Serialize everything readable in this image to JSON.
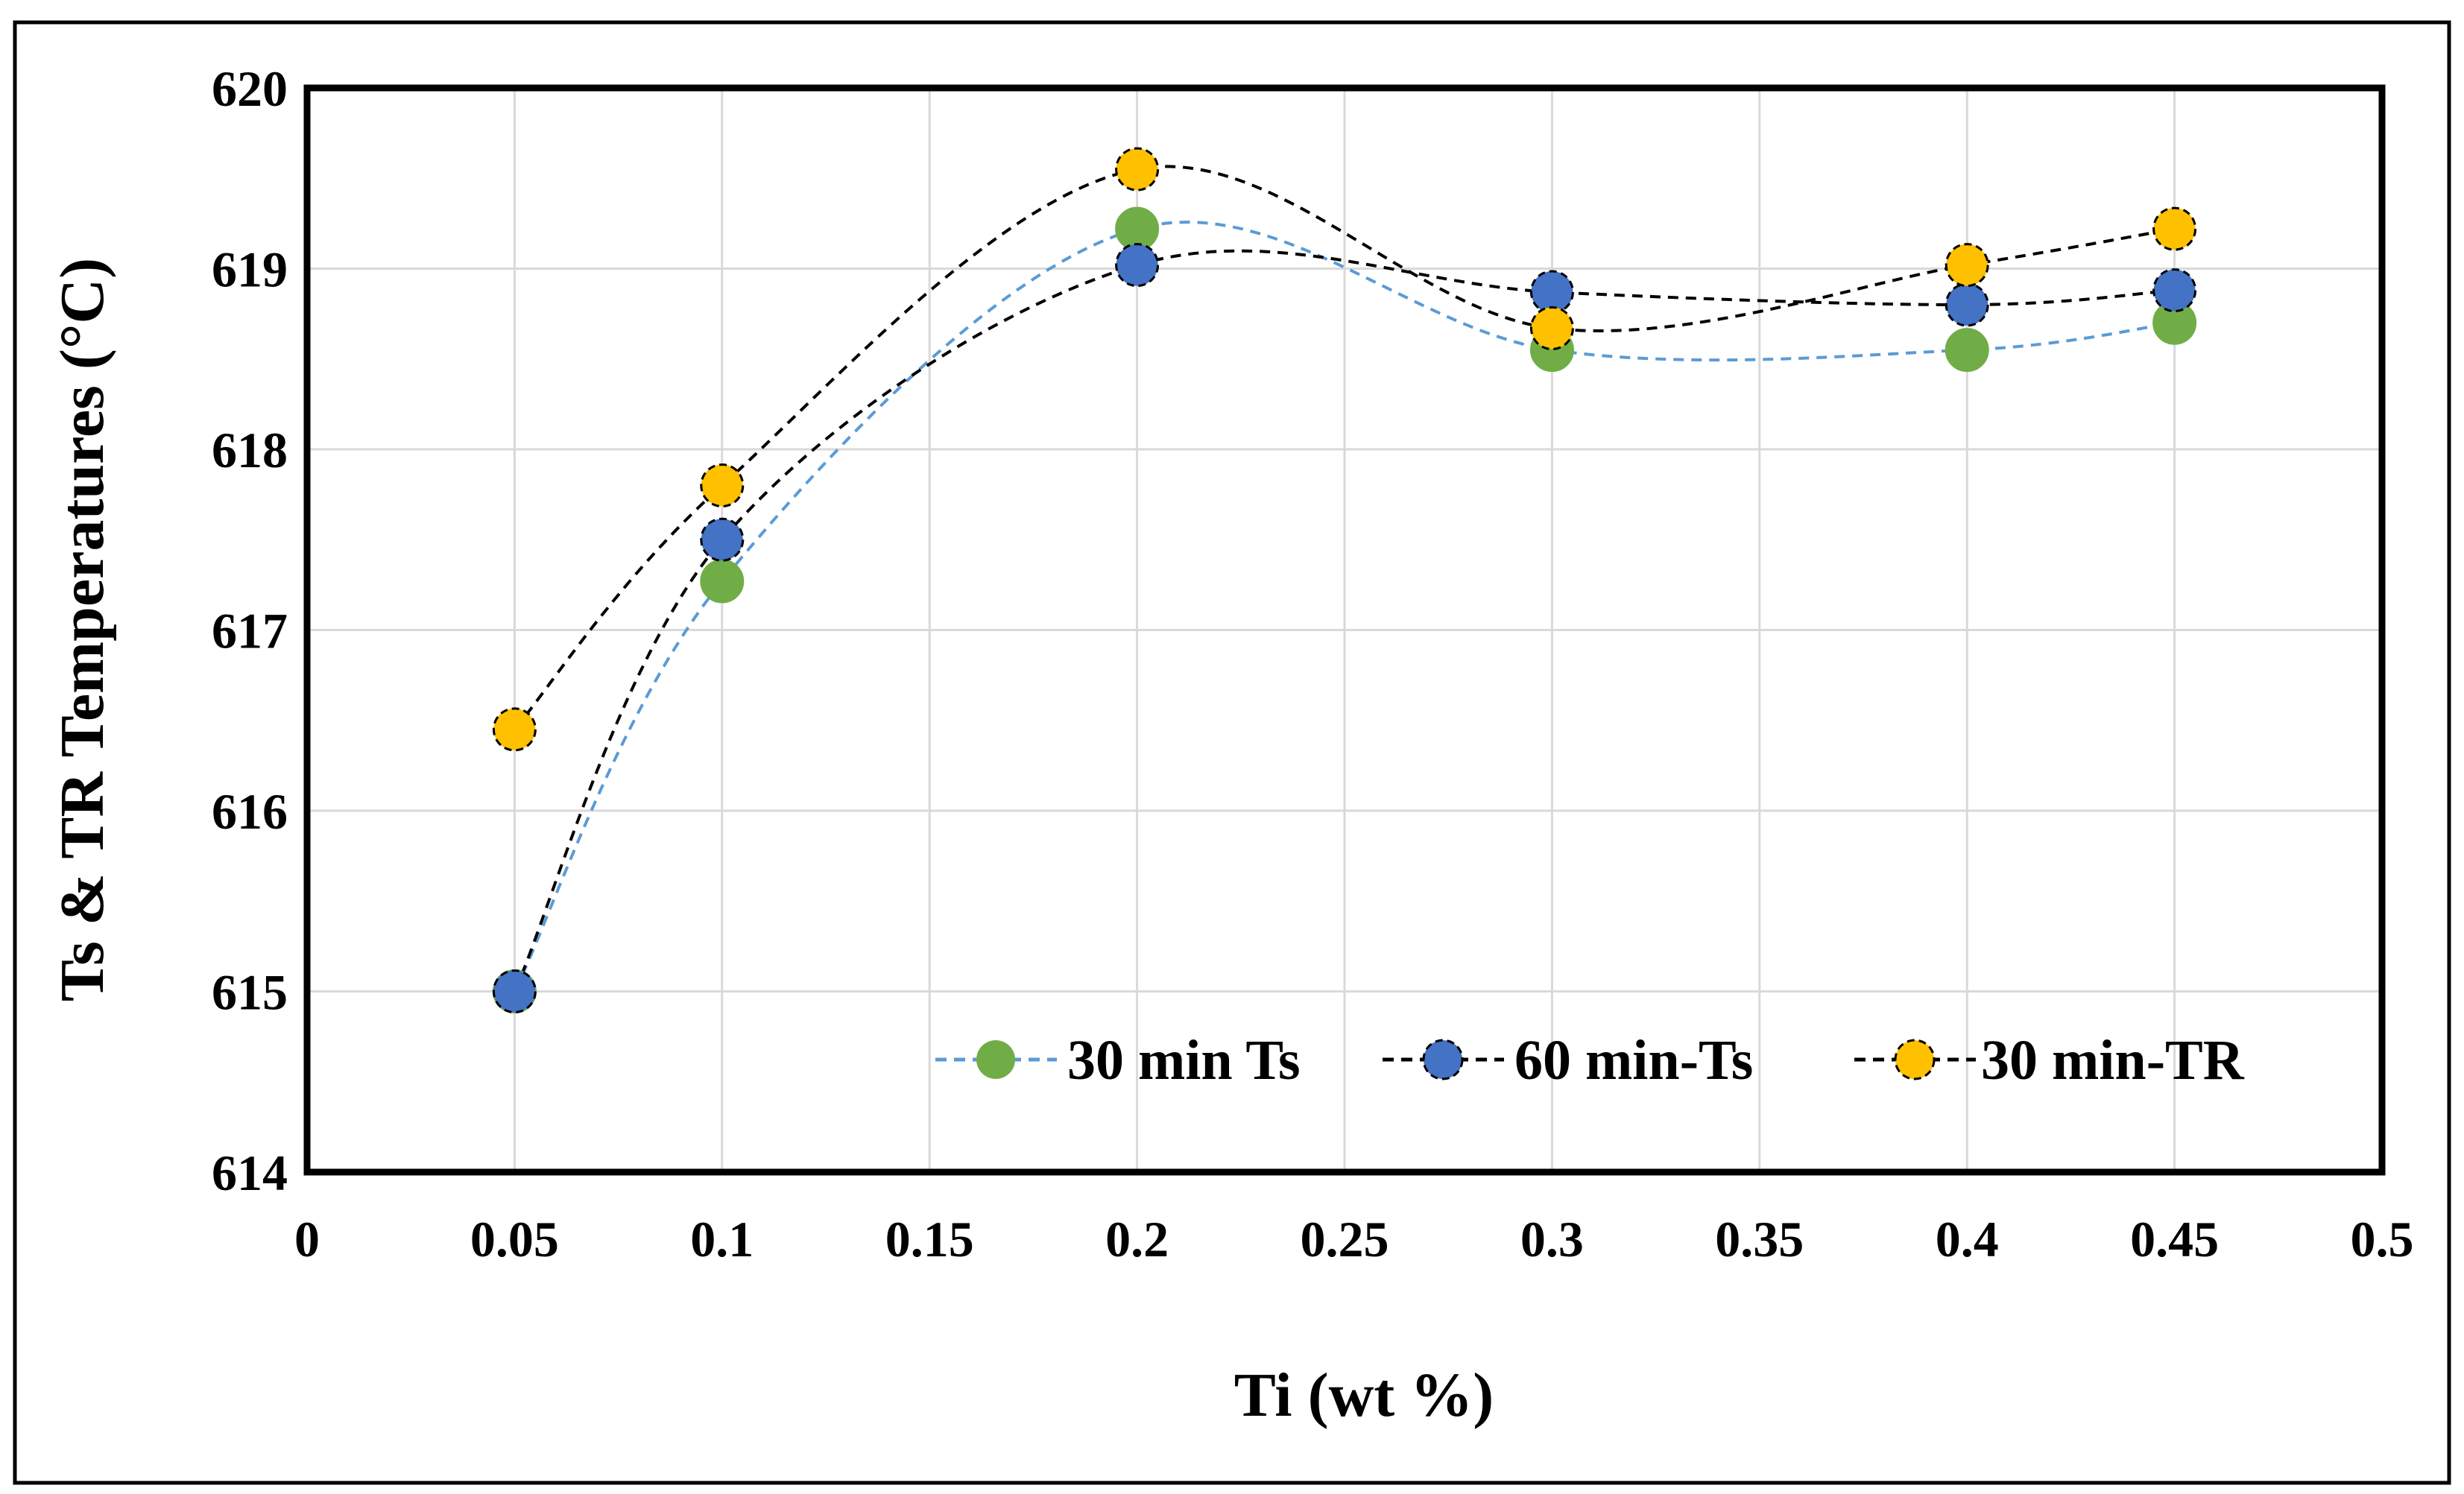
{
  "chart_data": {
    "type": "scatter",
    "title": "",
    "xlabel": "Ti (wt %)",
    "ylabel": "Ts & TR Temperatures (°C)",
    "xlim": [
      0,
      0.5
    ],
    "ylim": [
      614,
      620
    ],
    "xticks": [
      0,
      0.05,
      0.1,
      0.15,
      0.2,
      0.25,
      0.3,
      0.35,
      0.4,
      0.45,
      0.5
    ],
    "xtick_labels": [
      "0",
      "0.05",
      "0.1",
      "0.15",
      "0.2",
      "0.25",
      "0.3",
      "0.35",
      "0.4",
      "0.45",
      "0.5"
    ],
    "yticks": [
      614,
      615,
      616,
      617,
      618,
      619,
      620
    ],
    "ytick_labels": [
      "614",
      "615",
      "616",
      "617",
      "618",
      "619",
      "620"
    ],
    "grid": true,
    "legend_position": "bottom-right",
    "x": [
      0.05,
      0.1,
      0.2,
      0.3,
      0.4,
      0.45
    ],
    "series": [
      {
        "name": "30 min Ts",
        "values": [
          615.0,
          617.27,
          619.22,
          618.55,
          618.55,
          618.7
        ],
        "color": "#70ad47",
        "line_color": "#5b9bd5"
      },
      {
        "name": "60 min-Ts",
        "values": [
          615.0,
          617.5,
          619.02,
          618.87,
          618.8,
          618.88
        ],
        "color": "#4472c4",
        "line_color": "#000000"
      },
      {
        "name": "30 min-TR",
        "values": [
          616.45,
          617.8,
          619.55,
          618.67,
          619.02,
          619.22
        ],
        "color": "#ffc000",
        "line_color": "#000000"
      }
    ]
  }
}
